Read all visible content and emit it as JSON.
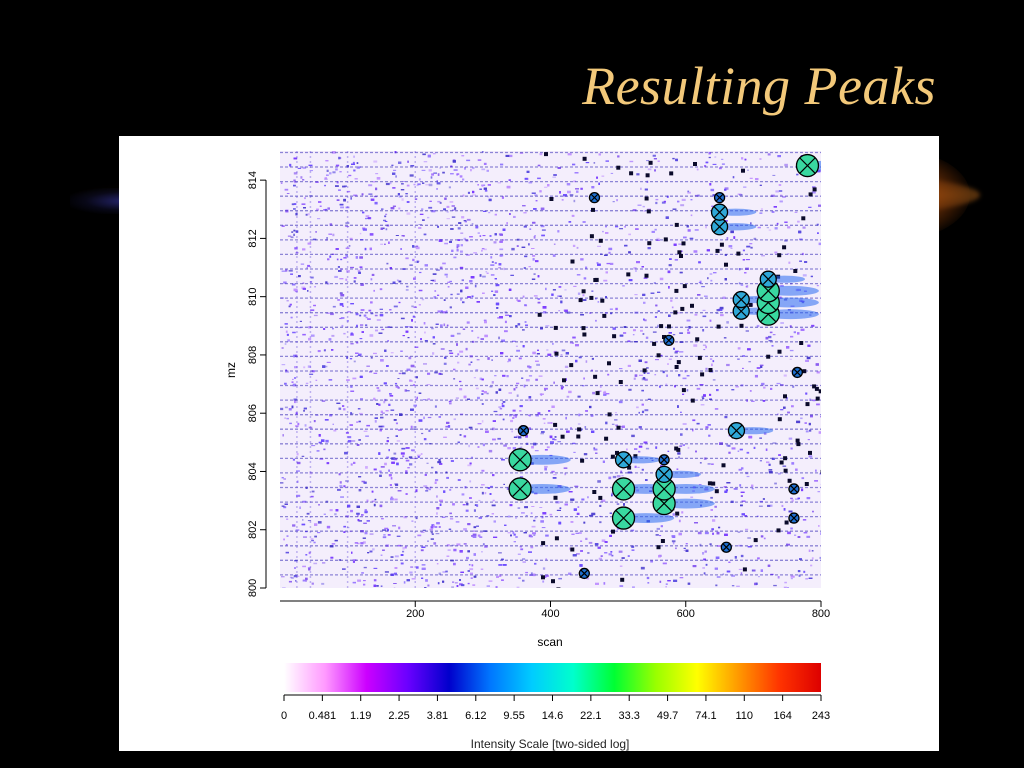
{
  "slide": {
    "title": "Resulting Peaks"
  },
  "chart_data": {
    "type": "heatmap",
    "xlabel": "scan",
    "ylabel": "mz",
    "xlim": [
      0,
      800
    ],
    "ylim": [
      800,
      815
    ],
    "x_ticks": [
      "200",
      "400",
      "600",
      "800"
    ],
    "y_ticks": [
      "800",
      "802",
      "804",
      "806",
      "808",
      "810",
      "812",
      "814"
    ],
    "background": "dense purple/blue noise across full plot; denser band for scan 0-380",
    "peaks": [
      {
        "scan": 355,
        "mz": 803.4,
        "size": "large"
      },
      {
        "scan": 355,
        "mz": 804.4,
        "size": "large"
      },
      {
        "scan": 360,
        "mz": 805.4,
        "size": "small"
      },
      {
        "scan": 508,
        "mz": 802.4,
        "size": "large"
      },
      {
        "scan": 508,
        "mz": 803.4,
        "size": "large"
      },
      {
        "scan": 508,
        "mz": 804.4,
        "size": "medium"
      },
      {
        "scan": 568,
        "mz": 802.9,
        "size": "large"
      },
      {
        "scan": 568,
        "mz": 803.4,
        "size": "large"
      },
      {
        "scan": 568,
        "mz": 803.9,
        "size": "medium"
      },
      {
        "scan": 568,
        "mz": 804.4,
        "size": "small"
      },
      {
        "scan": 650,
        "mz": 812.4,
        "size": "medium"
      },
      {
        "scan": 650,
        "mz": 812.9,
        "size": "medium"
      },
      {
        "scan": 650,
        "mz": 813.4,
        "size": "small"
      },
      {
        "scan": 682,
        "mz": 809.5,
        "size": "medium"
      },
      {
        "scan": 682,
        "mz": 809.9,
        "size": "medium"
      },
      {
        "scan": 722,
        "mz": 809.4,
        "size": "large"
      },
      {
        "scan": 722,
        "mz": 809.8,
        "size": "large"
      },
      {
        "scan": 722,
        "mz": 810.2,
        "size": "large"
      },
      {
        "scan": 722,
        "mz": 810.6,
        "size": "medium"
      },
      {
        "scan": 675,
        "mz": 805.4,
        "size": "medium"
      },
      {
        "scan": 780,
        "mz": 814.5,
        "size": "large"
      },
      {
        "scan": 760,
        "mz": 803.4,
        "size": "small"
      },
      {
        "scan": 760,
        "mz": 802.4,
        "size": "small"
      },
      {
        "scan": 765,
        "mz": 807.4,
        "size": "small"
      },
      {
        "scan": 575,
        "mz": 808.5,
        "size": "small"
      },
      {
        "scan": 660,
        "mz": 801.4,
        "size": "small"
      },
      {
        "scan": 450,
        "mz": 800.5,
        "size": "small"
      },
      {
        "scan": 465,
        "mz": 813.4,
        "size": "small"
      }
    ]
  },
  "colorbar": {
    "label": "Intensity Scale [two-sided log]",
    "ticks": [
      "0",
      "0.481",
      "1.19",
      "2.25",
      "3.81",
      "6.12",
      "9.55",
      "14.6",
      "22.1",
      "33.3",
      "49.7",
      "74.1",
      "110",
      "164",
      "243"
    ],
    "colors": [
      "#ffffff",
      "#ff99ff",
      "#cc00ff",
      "#6a00ff",
      "#0000cc",
      "#0077ff",
      "#00ccff",
      "#00ffcc",
      "#00ff33",
      "#99ff00",
      "#ffff00",
      "#ff9900",
      "#ff3300",
      "#dd0000"
    ]
  }
}
